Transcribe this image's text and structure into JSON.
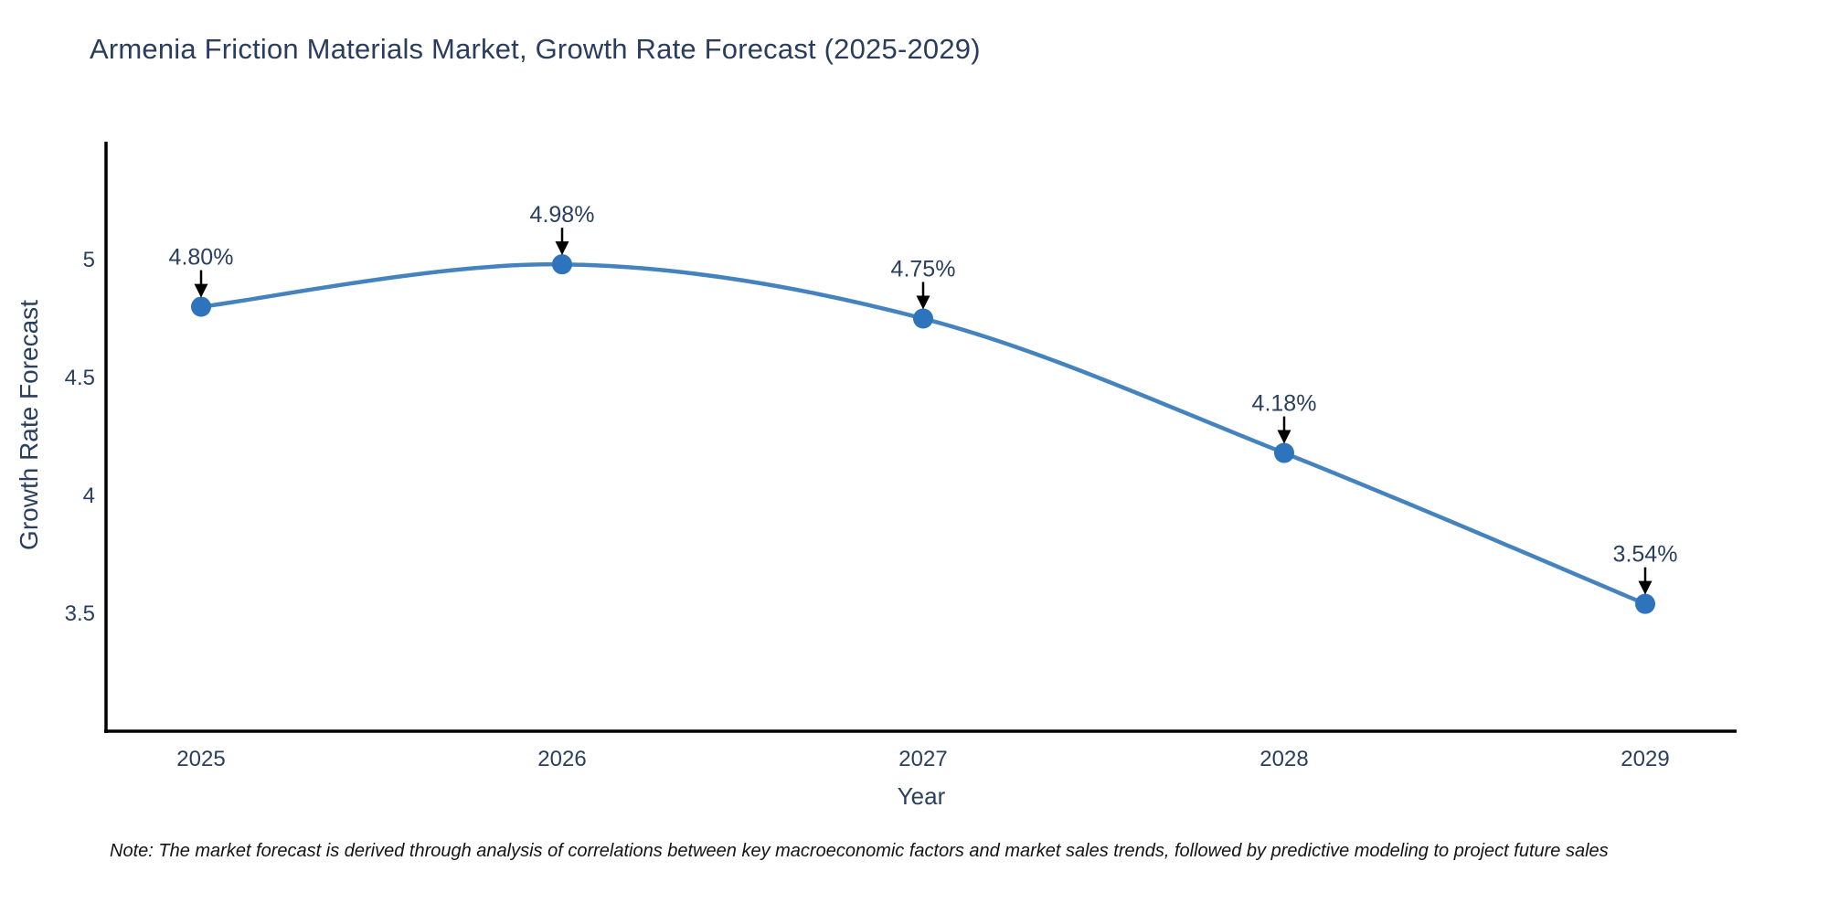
{
  "page": {
    "title": "Armenia Friction Materials Market, Growth Rate Forecast (2025-2029)",
    "note": "Note: The market forecast is derived through analysis of correlations between key macroeconomic factors and market sales trends, followed by predictive modeling to project future sales"
  },
  "colors": {
    "line": "#4483bd",
    "marker": "#2e74bd",
    "axis": "#000000",
    "tick_text": "#2a3f5f",
    "annotation_text": "#2a3f5f",
    "arrow": "#000000",
    "title_text": "#2b3d5c",
    "note_text": "#141414",
    "background": "#ffffff"
  },
  "chart_data": {
    "type": "line",
    "title": "Armenia Friction Materials Market, Growth Rate Forecast (2025-2029)",
    "xlabel": "Year",
    "ylabel": "Growth Rate Forecast",
    "categories": [
      "2025",
      "2026",
      "2027",
      "2028",
      "2029"
    ],
    "values": [
      4.8,
      4.98,
      4.75,
      4.18,
      3.54
    ],
    "point_labels": [
      "4.80%",
      "4.98%",
      "4.75%",
      "4.18%",
      "3.54%"
    ],
    "yticks": [
      3.5,
      4,
      4.5,
      5
    ],
    "ytick_labels": [
      "3.5",
      "4",
      "4.5",
      "5"
    ],
    "ylim": [
      3.0,
      5.5
    ],
    "grid": false,
    "legend": false,
    "line_shape": "spline",
    "markers": true,
    "annotations_have_arrows": true
  }
}
